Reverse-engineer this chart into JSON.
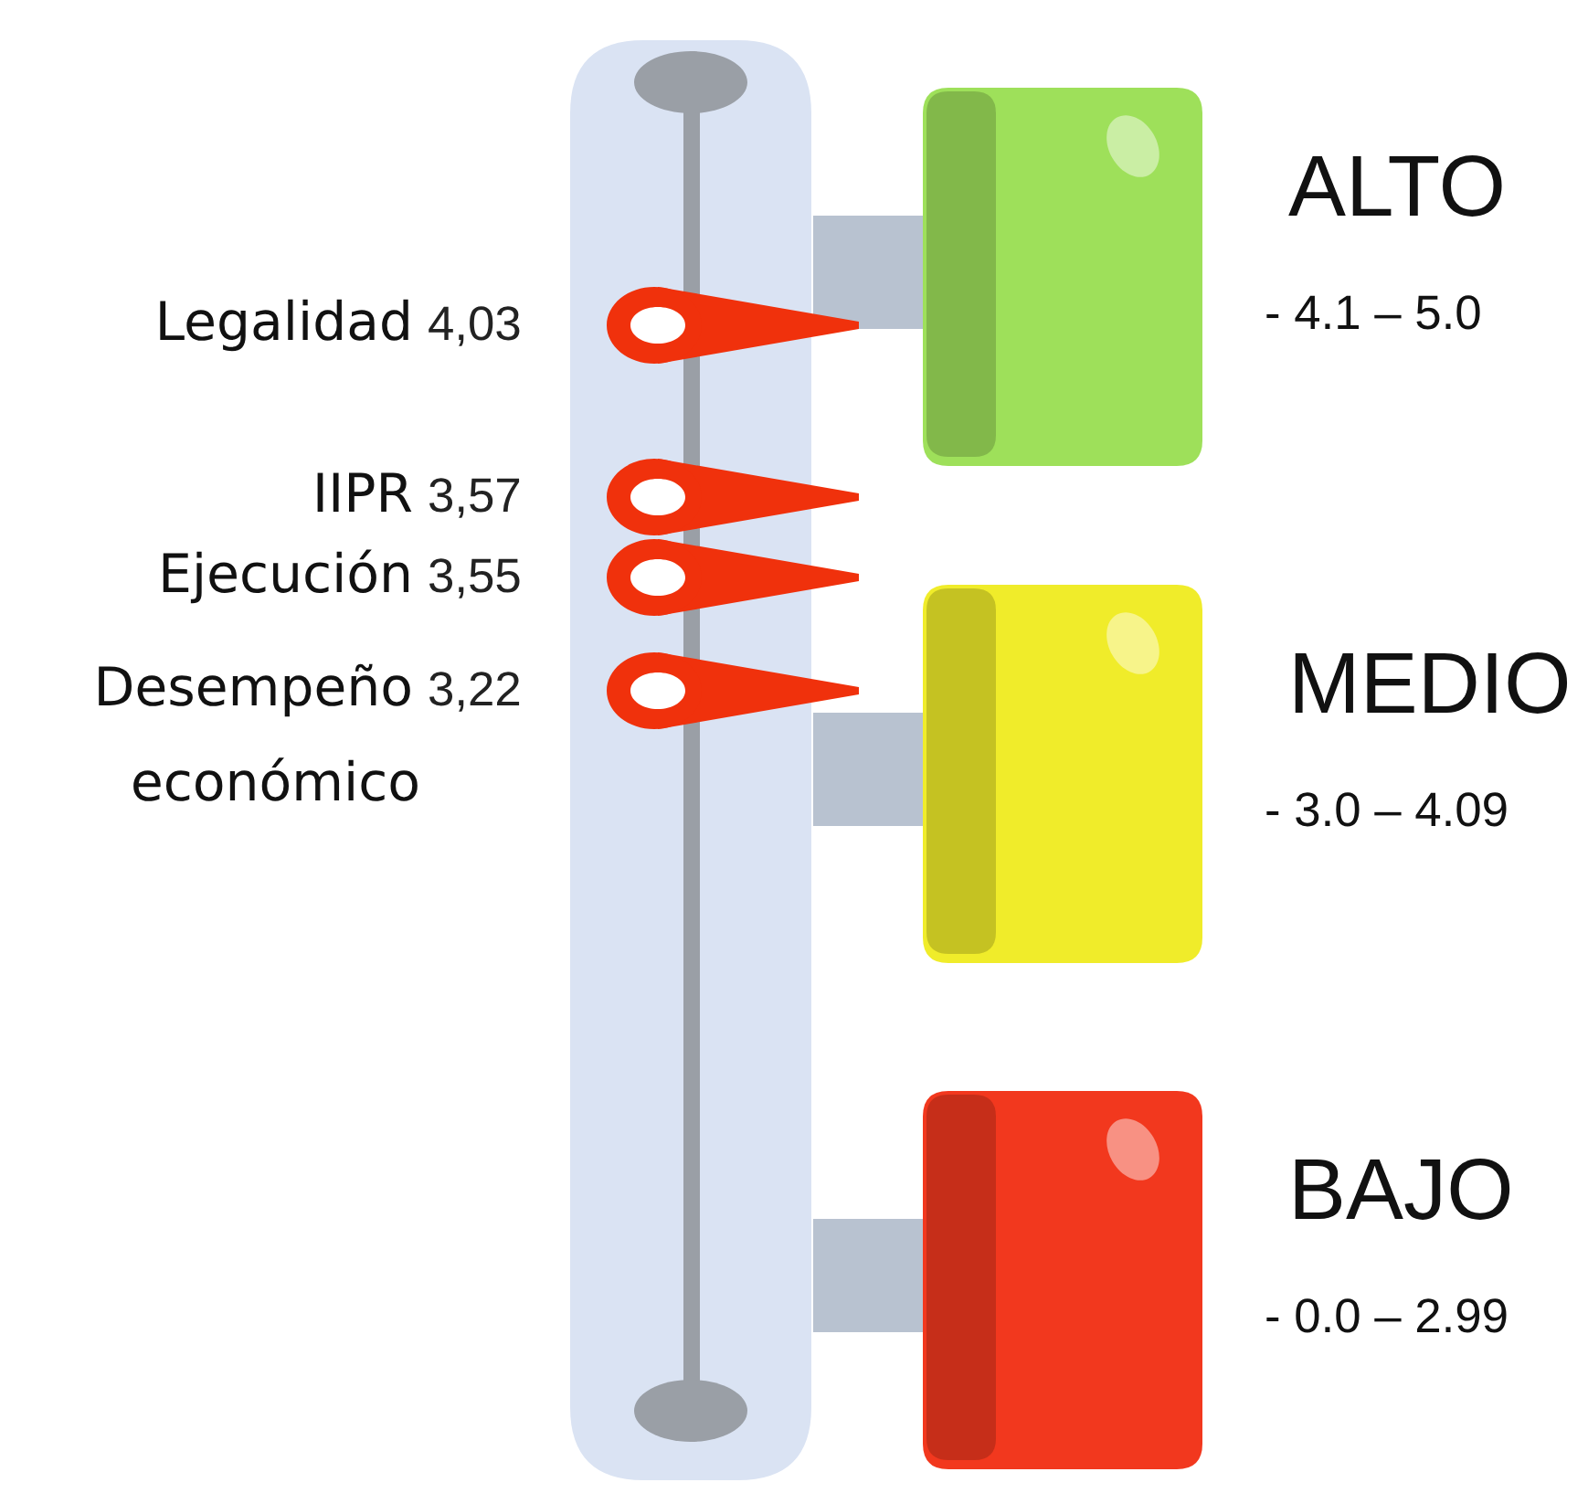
{
  "chart_data": {
    "type": "other",
    "categories": [
      "Legalidad",
      "IIPR",
      "Ejecución",
      "Desempeño\neconómico"
    ],
    "values": [
      4.03,
      3.57,
      3.55,
      3.22
    ],
    "value_labels": [
      "4,03",
      "3,57",
      "3,55",
      "3,22"
    ],
    "color": "#f0310c",
    "annotations": [
      "ALTO",
      "- 4.1 – 5.0",
      "MEDIO",
      "- 3.0 – 4.09",
      "BAJO",
      "- 0.0 – 2.99"
    ]
  }
}
